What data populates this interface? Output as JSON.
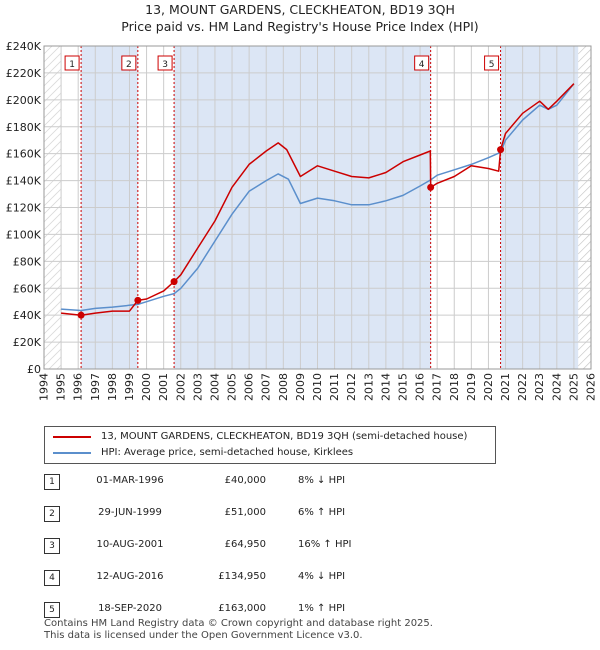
{
  "title_line1": "13, MOUNT GARDENS, CLECKHEATON, BD19 3QH",
  "title_line2": "Price paid vs. HM Land Registry's House Price Index (HPI)",
  "colors": {
    "property": "#cc0000",
    "hpi": "#5b8fcc",
    "shade": "#dce6f5",
    "grid": "#cccccc",
    "badge_border": "#cc0000"
  },
  "legend": {
    "property": "13, MOUNT GARDENS, CLECKHEATON, BD19 3QH (semi-detached house)",
    "hpi": "HPI: Average price, semi-detached house, Kirklees"
  },
  "sales": [
    {
      "n": "1",
      "date": "01-MAR-1996",
      "price": "£40,000",
      "hpi": "8% ↓ HPI"
    },
    {
      "n": "2",
      "date": "29-JUN-1999",
      "price": "£51,000",
      "hpi": "6% ↑ HPI"
    },
    {
      "n": "3",
      "date": "10-AUG-2001",
      "price": "£64,950",
      "hpi": "16% ↑ HPI"
    },
    {
      "n": "4",
      "date": "12-AUG-2016",
      "price": "£134,950",
      "hpi": "4% ↓ HPI"
    },
    {
      "n": "5",
      "date": "18-SEP-2020",
      "price": "£163,000",
      "hpi": "1% ↑ HPI"
    }
  ],
  "footer_line1": "Contains HM Land Registry data © Crown copyright and database right 2025.",
  "footer_line2": "This data is licensed under the Open Government Licence v3.0.",
  "chart_data": {
    "type": "line",
    "title": "13, MOUNT GARDENS, CLECKHEATON, BD19 3QH — Price paid vs. HM Land Registry's House Price Index (HPI)",
    "xlim": [
      1994,
      2026
    ],
    "ylim": [
      0,
      240000
    ],
    "x_ticks": [
      1994,
      1995,
      1996,
      1997,
      1998,
      1999,
      2000,
      2001,
      2002,
      2003,
      2004,
      2005,
      2006,
      2007,
      2008,
      2009,
      2010,
      2011,
      2012,
      2013,
      2014,
      2015,
      2016,
      2017,
      2018,
      2019,
      2020,
      2021,
      2022,
      2023,
      2024,
      2025,
      2026
    ],
    "y_ticks": [
      0,
      20000,
      40000,
      60000,
      80000,
      100000,
      120000,
      140000,
      160000,
      180000,
      200000,
      220000,
      240000
    ],
    "y_tick_labels": [
      "£0",
      "£20K",
      "£40K",
      "£60K",
      "£80K",
      "£100K",
      "£120K",
      "£140K",
      "£160K",
      "£180K",
      "£200K",
      "£220K",
      "£240K"
    ],
    "data_start": 1995,
    "data_end": 2025.25,
    "sale_points": [
      {
        "label": "1",
        "x": 1996.17,
        "y": 40000
      },
      {
        "label": "2",
        "x": 1999.49,
        "y": 51000
      },
      {
        "label": "3",
        "x": 2001.61,
        "y": 64950
      },
      {
        "label": "4",
        "x": 2016.62,
        "y": 134950
      },
      {
        "label": "5",
        "x": 2020.71,
        "y": 163000
      }
    ],
    "series": [
      {
        "name": "13, MOUNT GARDENS, CLECKHEATON, BD19 3QH (semi-detached house)",
        "x": [
          1995,
          1996.17,
          1997,
          1998,
          1999.0,
          1999.49,
          2000,
          2001,
          2001.61,
          2002,
          2003,
          2004,
          2005,
          2006,
          2007,
          2007.7,
          2008.2,
          2009,
          2010,
          2011,
          2012,
          2013,
          2014,
          2015,
          2016,
          2016.6,
          2016.62,
          2017,
          2018,
          2019,
          2020,
          2020.6,
          2020.71,
          2021,
          2022,
          2023,
          2023.5,
          2024,
          2025
        ],
        "y": [
          41500,
          40000,
          41500,
          43000,
          43000,
          51000,
          52000,
          58000,
          64950,
          70000,
          90000,
          110000,
          135000,
          152000,
          162000,
          168000,
          163000,
          143000,
          151000,
          147000,
          143000,
          142000,
          146000,
          154000,
          159000,
          162000,
          134950,
          138000,
          143000,
          151000,
          149000,
          147000,
          163000,
          175000,
          190000,
          199000,
          193000,
          199000,
          212000
        ]
      },
      {
        "name": "HPI: Average price, semi-detached house, Kirklees",
        "x": [
          1995,
          1996.17,
          1997,
          1998,
          1999.49,
          2000,
          2001,
          2001.61,
          2002,
          2003,
          2004,
          2005,
          2006,
          2007,
          2007.7,
          2008.3,
          2009,
          2010,
          2011,
          2012,
          2013,
          2014,
          2015,
          2016,
          2016.62,
          2017,
          2018,
          2019,
          2020,
          2020.71,
          2021,
          2022,
          2023,
          2023.5,
          2024,
          2025
        ],
        "y": [
          44500,
          43500,
          45000,
          46000,
          48000,
          50000,
          54000,
          56000,
          60000,
          75000,
          95000,
          115000,
          132000,
          140000,
          145000,
          141000,
          123000,
          127000,
          125000,
          122000,
          122000,
          125000,
          129000,
          136000,
          140500,
          144000,
          148000,
          152000,
          157000,
          161000,
          170000,
          185000,
          196000,
          193000,
          196000,
          212000
        ]
      }
    ]
  }
}
